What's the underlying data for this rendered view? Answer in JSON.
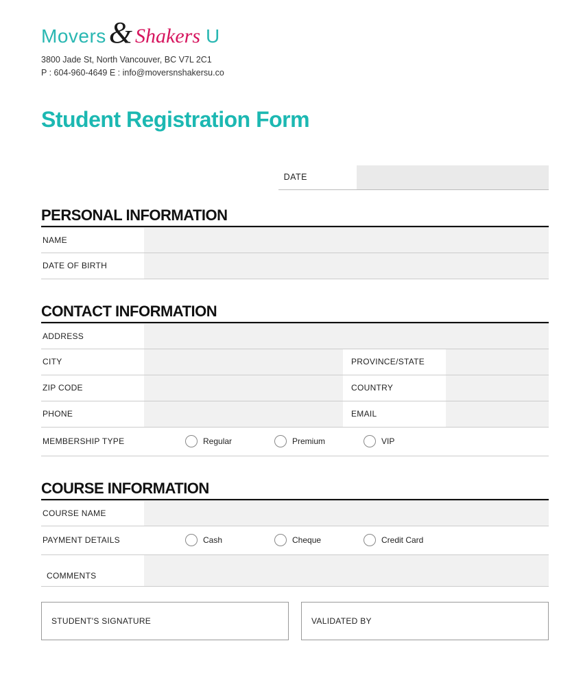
{
  "logo": {
    "movers": "Movers",
    "amp": "&",
    "shakers": "Shakers",
    "u": "U"
  },
  "contact": {
    "address": "3800 Jade St, North Vancouver, BC V7L 2C1",
    "phone_email": "P : 604-960-4649  E : info@moversnshakersu.co"
  },
  "page_title": "Student Registration Form",
  "date_label": "DATE",
  "sections": {
    "personal": {
      "title": "PERSONAL INFORMATION",
      "fields": {
        "name": "NAME",
        "dob": "DATE OF BIRTH"
      }
    },
    "contact_info": {
      "title": "CONTACT INFORMATION",
      "fields": {
        "address": "ADDRESS",
        "city": "CITY",
        "province": "PROVINCE/STATE",
        "zip": "ZIP CODE",
        "country": "COUNTRY",
        "phone": "PHONE",
        "email": "EMAIL",
        "membership": "MEMBERSHIP TYPE"
      },
      "membership_options": [
        "Regular",
        "Premium",
        "VIP"
      ]
    },
    "course": {
      "title": "COURSE INFORMATION",
      "fields": {
        "course_name": "COURSE NAME",
        "payment": "PAYMENT DETAILS",
        "comments": "COMMENTS"
      },
      "payment_options": [
        "Cash",
        "Cheque",
        "Credit Card"
      ]
    }
  },
  "signature": {
    "student": "STUDENT'S SIGNATURE",
    "validated": "VALIDATED BY"
  },
  "colors": {
    "teal": "#1cb8b2",
    "pink": "#d6155e",
    "field_bg": "#f1f1f1",
    "date_bg": "#eaeaea",
    "rule": "#111111",
    "divider": "#cccccc"
  }
}
